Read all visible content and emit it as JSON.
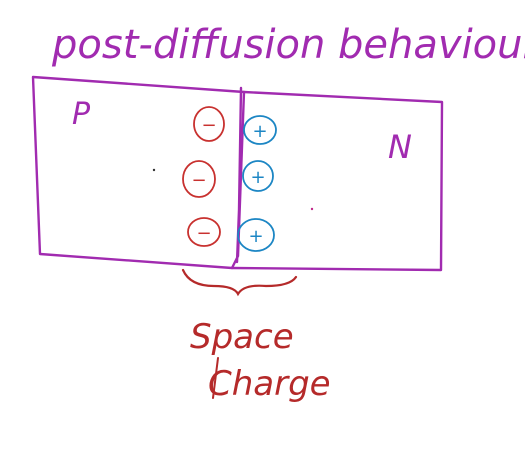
{
  "title": "post-diffusion behaviour.",
  "p_region_label": "P",
  "n_region_label": "N",
  "negative_ion_symbol": "−",
  "positive_ion_symbol": "+",
  "space_charge_label_line1": "Space",
  "space_charge_label_line2": "Charge",
  "colors": {
    "junction": "#a12bb0",
    "negative_ions": "#c8312f",
    "positive_ions": "#1c86c4",
    "space_charge": "#b52a2a"
  }
}
